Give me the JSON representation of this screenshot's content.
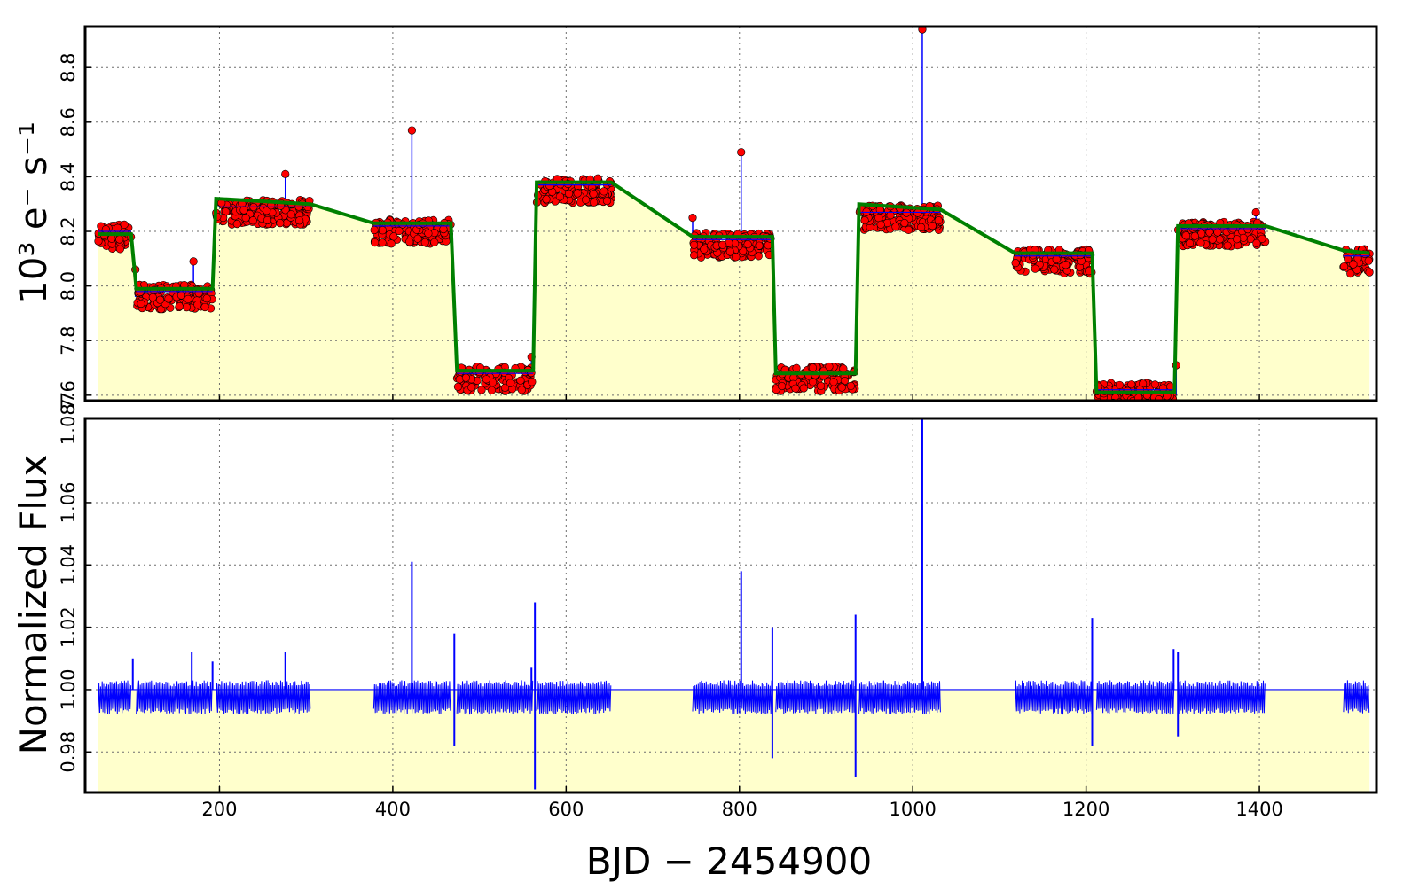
{
  "chart_data": [
    {
      "type": "scatter",
      "panel": "top",
      "ylabel": "10³ e⁻ s⁻¹",
      "xlim": [
        45,
        1535
      ],
      "ylim": [
        7.58,
        8.95
      ],
      "x_ticks": [
        200,
        400,
        600,
        800,
        1000,
        1200,
        1400
      ],
      "y_ticks": [
        7.6,
        7.8,
        8.0,
        8.2,
        8.4,
        8.6,
        8.8
      ],
      "y_tick_labels": [
        "7.6",
        "7.8",
        "8.0",
        "8.2",
        "8.4",
        "8.6",
        "8.8"
      ],
      "grid": true,
      "fill_color": "#ffffcc",
      "point_color": "#ff0000",
      "line_color": "#0000ff",
      "fit_color": "#008000",
      "segments": [
        {
          "x": [
            60,
            98
          ],
          "y": 8.18
        },
        {
          "x": [
            104,
            192
          ],
          "y": 7.96
        },
        {
          "x": [
            196,
            305
          ],
          "y": 8.27
        },
        {
          "x": [
            378,
            467
          ],
          "y": 8.2
        },
        {
          "x": [
            474,
            562
          ],
          "y": 7.66
        },
        {
          "x": [
            566,
            652
          ],
          "y": 8.35
        },
        {
          "x": [
            746,
            838
          ],
          "y": 8.15
        },
        {
          "x": [
            842,
            934
          ],
          "y": 7.66
        },
        {
          "x": [
            938,
            1032
          ],
          "y": 8.25
        },
        {
          "x": [
            1118,
            1207
          ],
          "y": 8.09
        },
        {
          "x": [
            1212,
            1302
          ],
          "y": 7.6
        },
        {
          "x": [
            1306,
            1407
          ],
          "y": 8.19
        },
        {
          "x": [
            1497,
            1527
          ],
          "y": 8.09
        }
      ],
      "outliers": [
        {
          "x": 103,
          "y": 8.06
        },
        {
          "x": 170,
          "y": 8.09
        },
        {
          "x": 276,
          "y": 8.41
        },
        {
          "x": 422,
          "y": 8.57
        },
        {
          "x": 746,
          "y": 8.25
        },
        {
          "x": 802,
          "y": 8.49
        },
        {
          "x": 1011,
          "y": 8.94
        },
        {
          "x": 1304,
          "y": 7.71
        },
        {
          "x": 1396,
          "y": 8.27
        },
        {
          "x": 560,
          "y": 7.74
        }
      ],
      "trend": {
        "x": [
          60,
          98,
          104,
          192,
          196,
          305,
          378,
          467,
          474,
          562,
          566,
          652,
          746,
          838,
          842,
          934,
          938,
          1032,
          1118,
          1207,
          1212,
          1302,
          1306,
          1407,
          1497,
          1527
        ],
        "y": [
          8.19,
          8.19,
          7.99,
          7.99,
          8.32,
          8.3,
          8.23,
          8.23,
          7.69,
          7.69,
          8.38,
          8.38,
          8.18,
          8.18,
          7.68,
          7.68,
          8.3,
          8.28,
          8.12,
          8.12,
          7.61,
          7.61,
          8.22,
          8.22,
          8.13,
          8.12
        ]
      }
    },
    {
      "type": "line",
      "panel": "bottom",
      "xlabel": "BJD − 2454900",
      "ylabel": "Normalized Flux",
      "xlim": [
        45,
        1535
      ],
      "ylim": [
        0.967,
        1.087
      ],
      "x_ticks": [
        200,
        400,
        600,
        800,
        1000,
        1200,
        1400
      ],
      "x_tick_labels": [
        "200",
        "400",
        "600",
        "800",
        "1000",
        "1200",
        "1400"
      ],
      "y_ticks": [
        0.98,
        1.0,
        1.02,
        1.04,
        1.06,
        1.087
      ],
      "y_tick_labels": [
        "0.98",
        "1.00",
        "1.02",
        "1.04",
        "1.06",
        "1.087"
      ],
      "grid": true,
      "fill_color": "#ffffcc",
      "line_color": "#0000ff",
      "noise_band": [
        0.992,
        1.003
      ],
      "segments": [
        [
          60,
          98
        ],
        [
          104,
          192
        ],
        [
          196,
          305
        ],
        [
          378,
          467
        ],
        [
          474,
          562
        ],
        [
          566,
          652
        ],
        [
          746,
          838
        ],
        [
          842,
          934
        ],
        [
          938,
          1032
        ],
        [
          1118,
          1207
        ],
        [
          1212,
          1302
        ],
        [
          1306,
          1407
        ],
        [
          1497,
          1527
        ]
      ],
      "spikes": [
        {
          "x": 100,
          "y": 1.01
        },
        {
          "x": 168,
          "y": 1.012
        },
        {
          "x": 192,
          "y": 1.009
        },
        {
          "x": 276,
          "y": 1.012
        },
        {
          "x": 422,
          "y": 1.041
        },
        {
          "x": 471,
          "y": 1.018
        },
        {
          "x": 471,
          "y": 0.982
        },
        {
          "x": 560,
          "y": 1.007
        },
        {
          "x": 564,
          "y": 1.028
        },
        {
          "x": 564,
          "y": 0.968
        },
        {
          "x": 802,
          "y": 1.038
        },
        {
          "x": 838,
          "y": 1.02
        },
        {
          "x": 838,
          "y": 0.978
        },
        {
          "x": 934,
          "y": 1.024
        },
        {
          "x": 934,
          "y": 0.972
        },
        {
          "x": 1011,
          "y": 1.087
        },
        {
          "x": 1207,
          "y": 1.023
        },
        {
          "x": 1207,
          "y": 0.982
        },
        {
          "x": 1301,
          "y": 1.013
        },
        {
          "x": 1306,
          "y": 1.012
        },
        {
          "x": 1306,
          "y": 0.985
        }
      ]
    }
  ]
}
